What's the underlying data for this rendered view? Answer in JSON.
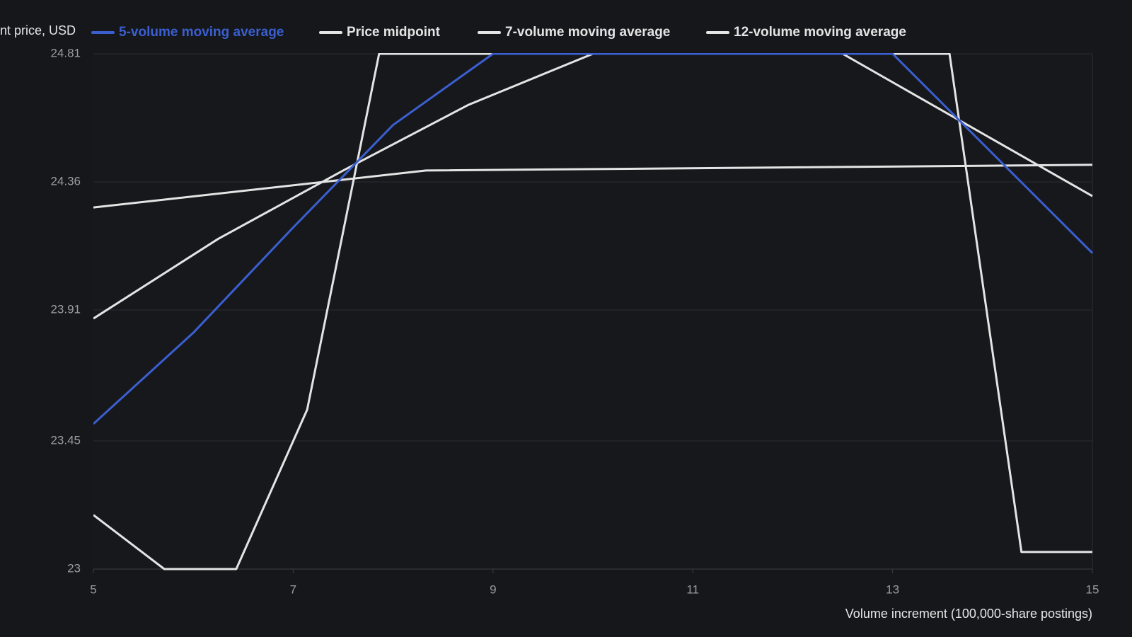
{
  "chart_data": {
    "type": "line",
    "y_label": "nt price, USD",
    "x_label": "Volume increment (100,000-share postings)",
    "xlim": [
      5,
      15
    ],
    "xticks": [
      5,
      7,
      9,
      11,
      13,
      15
    ],
    "ylim": [
      23,
      24.81
    ],
    "yticks": [
      23,
      23.45,
      23.91,
      24.36,
      24.81
    ],
    "grid": true,
    "series": [
      {
        "name": "5-volume moving average",
        "color": "#3b5fd0",
        "x": [
          5,
          6,
          7,
          8,
          9,
          10,
          11,
          12,
          13,
          14,
          15
        ],
        "values": [
          23.51,
          23.83,
          24.2,
          24.56,
          24.81,
          24.81,
          24.81,
          24.81,
          24.81,
          24.46,
          24.11
        ]
      },
      {
        "name": "Price midpoint",
        "color": "#e4e4e4",
        "x": [
          5,
          5.71,
          6.43,
          7.14,
          7.86,
          8.57,
          9.29,
          10,
          10.71,
          11.43,
          12.14,
          12.86,
          13.57,
          14.29,
          15
        ],
        "values": [
          23.19,
          23,
          23,
          23.56,
          24.81,
          24.81,
          24.81,
          24.81,
          24.81,
          24.81,
          24.81,
          24.81,
          24.81,
          23.06,
          23.06
        ]
      },
      {
        "name": "7-volume moving average",
        "color": "#e4e4e4",
        "x": [
          5,
          6.25,
          7.5,
          8.75,
          10,
          11.25,
          12.5,
          13.75,
          15
        ],
        "values": [
          23.88,
          24.16,
          24.4,
          24.63,
          24.81,
          24.81,
          24.81,
          24.56,
          24.31
        ]
      },
      {
        "name": "12-volume moving average",
        "color": "#e4e4e4",
        "x": [
          5,
          8.33,
          11.67,
          15
        ],
        "values": [
          24.27,
          24.4,
          24.41,
          24.42
        ]
      }
    ]
  }
}
